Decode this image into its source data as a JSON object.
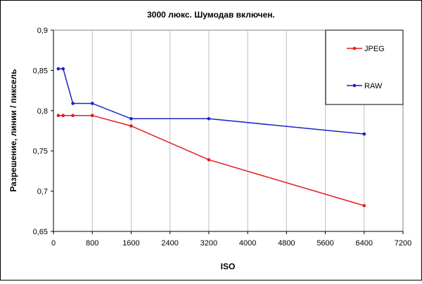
{
  "chart_data": {
    "type": "line",
    "title": "3000 люкс. Шумодав включен.",
    "xlabel": "ISO",
    "ylabel": "Разрешение, линии / пиксель",
    "xlim": [
      0,
      7200
    ],
    "ylim": [
      0.65,
      0.9
    ],
    "x_ticks": [
      0,
      800,
      1600,
      2400,
      3200,
      4000,
      4800,
      5600,
      6400,
      7200
    ],
    "x_tick_labels": [
      "0",
      "800",
      "1600",
      "2400",
      "3200",
      "4000",
      "4800",
      "5600",
      "6400",
      "7200"
    ],
    "y_ticks": [
      0.65,
      0.7,
      0.75,
      0.8,
      0.85,
      0.9
    ],
    "y_tick_labels": [
      "0,65",
      "0,7",
      "0,75",
      "0,8",
      "0,85",
      "0,9"
    ],
    "grid": "vertical",
    "legend_position": "top-right",
    "series": [
      {
        "name": "JPEG",
        "color": "#e11c1c",
        "x": [
          100,
          200,
          400,
          800,
          1600,
          3200,
          6400
        ],
        "y": [
          0.794,
          0.794,
          0.794,
          0.794,
          0.781,
          0.739,
          0.682
        ]
      },
      {
        "name": "RAW",
        "color": "#1c22c8",
        "x": [
          100,
          200,
          400,
          800,
          1600,
          3200,
          6400
        ],
        "y": [
          0.852,
          0.852,
          0.809,
          0.809,
          0.79,
          0.79,
          0.771
        ]
      }
    ]
  }
}
